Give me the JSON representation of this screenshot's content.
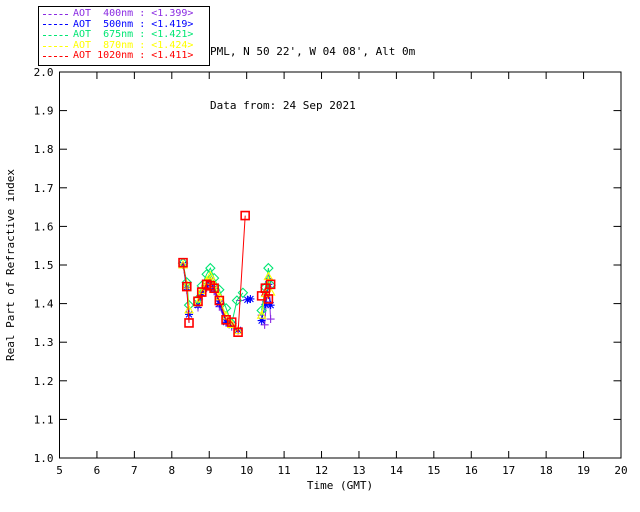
{
  "header": {
    "site_line": "PML, N 50 22', W 04 08', Alt 0m",
    "date_line": "Data from: 24 Sep 2021"
  },
  "chart_data": {
    "type": "line",
    "title": "PML, N 50 22', W 04 08', Alt 0m",
    "subtitle": "Data from: 24 Sep 2021",
    "xlabel": "Time (GMT)",
    "ylabel": "Real Part of Refractive index",
    "xlim": [
      5,
      20
    ],
    "ylim": [
      1.0,
      2.0
    ],
    "xticks": [
      5,
      6,
      7,
      8,
      9,
      10,
      11,
      12,
      13,
      14,
      15,
      16,
      17,
      18,
      19,
      20
    ],
    "yticks": [
      1.0,
      1.1,
      1.2,
      1.3,
      1.4,
      1.5,
      1.6,
      1.7,
      1.8,
      1.9,
      2.0
    ],
    "grid": false,
    "legend_position": "top-left",
    "series": [
      {
        "name": "AOT 400nm",
        "wavelength": "400nm",
        "legend_value": "<1.399>",
        "legend_text": "AOT  400nm : <1.399>",
        "color": "#8A2BE2",
        "marker": "plus",
        "segments": [
          [
            [
              8.3,
              1.5
            ],
            [
              8.4,
              1.435
            ],
            [
              8.46,
              1.36
            ]
          ],
          [
            [
              8.7,
              1.39
            ],
            [
              8.8,
              1.42
            ],
            [
              8.93,
              1.44
            ],
            [
              9.03,
              1.452
            ],
            [
              9.13,
              1.432
            ],
            [
              9.27,
              1.392
            ],
            [
              9.45,
              1.35
            ],
            [
              9.6,
              1.34
            ],
            [
              9.77,
              1.33
            ]
          ],
          [
            [
              9.82,
              1.408
            ]
          ],
          [
            [
              10.4,
              1.37
            ],
            [
              10.48,
              1.345
            ],
            [
              10.58,
              1.465
            ],
            [
              10.64,
              1.36
            ]
          ]
        ]
      },
      {
        "name": "AOT 500nm",
        "wavelength": "500nm",
        "legend_value": "<1.419>",
        "legend_text": "AOT  500nm : <1.419>",
        "color": "#0000FF",
        "marker": "asterisk",
        "segments": [
          [
            [
              8.3,
              1.5
            ],
            [
              8.4,
              1.442
            ],
            [
              8.46,
              1.372
            ]
          ],
          [
            [
              8.7,
              1.396
            ],
            [
              8.8,
              1.426
            ],
            [
              8.93,
              1.446
            ],
            [
              9.03,
              1.46
            ],
            [
              9.13,
              1.44
            ],
            [
              9.27,
              1.4
            ],
            [
              9.45,
              1.352
            ],
            [
              9.6,
              1.344
            ],
            [
              9.77,
              1.332
            ]
          ],
          [
            [
              10.02,
              1.41
            ],
            [
              10.1,
              1.412
            ]
          ],
          [
            [
              10.4,
              1.356
            ],
            [
              10.5,
              1.398
            ],
            [
              10.58,
              1.45
            ],
            [
              10.64,
              1.396
            ]
          ]
        ]
      },
      {
        "name": "AOT 675nm",
        "wavelength": "675nm",
        "legend_value": "<1.421>",
        "legend_text": "AOT  675nm : <1.421>",
        "color": "#00E673",
        "marker": "diamond",
        "segments": [
          [
            [
              8.3,
              1.505
            ],
            [
              8.4,
              1.455
            ],
            [
              8.46,
              1.396
            ]
          ],
          [
            [
              8.7,
              1.412
            ],
            [
              8.8,
              1.446
            ],
            [
              8.93,
              1.476
            ],
            [
              9.03,
              1.492
            ],
            [
              9.13,
              1.466
            ],
            [
              9.27,
              1.436
            ],
            [
              9.45,
              1.388
            ],
            [
              9.6,
              1.348
            ],
            [
              9.74,
              1.408
            ],
            [
              9.9,
              1.428
            ]
          ],
          [
            [
              10.4,
              1.382
            ],
            [
              10.5,
              1.442
            ],
            [
              10.58,
              1.492
            ],
            [
              10.64,
              1.448
            ]
          ]
        ]
      },
      {
        "name": "AOT 870nm",
        "wavelength": "870nm",
        "legend_value": "<1.424>",
        "legend_text": "AOT  870nm : <1.424>",
        "color": "#FFFF00",
        "marker": "triangle",
        "segments": [
          [
            [
              8.3,
              1.5
            ],
            [
              8.4,
              1.448
            ],
            [
              8.46,
              1.384
            ]
          ],
          [
            [
              8.7,
              1.402
            ],
            [
              8.8,
              1.434
            ],
            [
              8.93,
              1.458
            ],
            [
              9.03,
              1.472
            ],
            [
              9.13,
              1.45
            ],
            [
              9.27,
              1.418
            ],
            [
              9.45,
              1.368
            ],
            [
              9.6,
              1.346
            ],
            [
              9.77,
              1.33
            ]
          ],
          [
            [
              10.4,
              1.37
            ],
            [
              10.5,
              1.426
            ],
            [
              10.58,
              1.47
            ],
            [
              10.64,
              1.43
            ]
          ]
        ]
      },
      {
        "name": "AOT 1020nm",
        "wavelength": "1020nm",
        "legend_value": "<1.411>",
        "legend_text": "AOT 1020nm : <1.411>",
        "color": "#FF0000",
        "marker": "square",
        "segments": [
          [
            [
              8.3,
              1.506
            ],
            [
              8.4,
              1.444
            ],
            [
              8.46,
              1.35
            ]
          ],
          [
            [
              8.7,
              1.406
            ],
            [
              8.8,
              1.43
            ],
            [
              8.93,
              1.45
            ],
            [
              9.03,
              1.446
            ],
            [
              9.13,
              1.44
            ],
            [
              9.27,
              1.408
            ],
            [
              9.45,
              1.358
            ],
            [
              9.6,
              1.352
            ],
            [
              9.77,
              1.326
            ],
            [
              9.96,
              1.628
            ]
          ],
          [
            [
              10.4,
              1.42
            ],
            [
              10.5,
              1.44
            ],
            [
              10.58,
              1.412
            ],
            [
              10.64,
              1.45
            ]
          ]
        ]
      }
    ]
  }
}
